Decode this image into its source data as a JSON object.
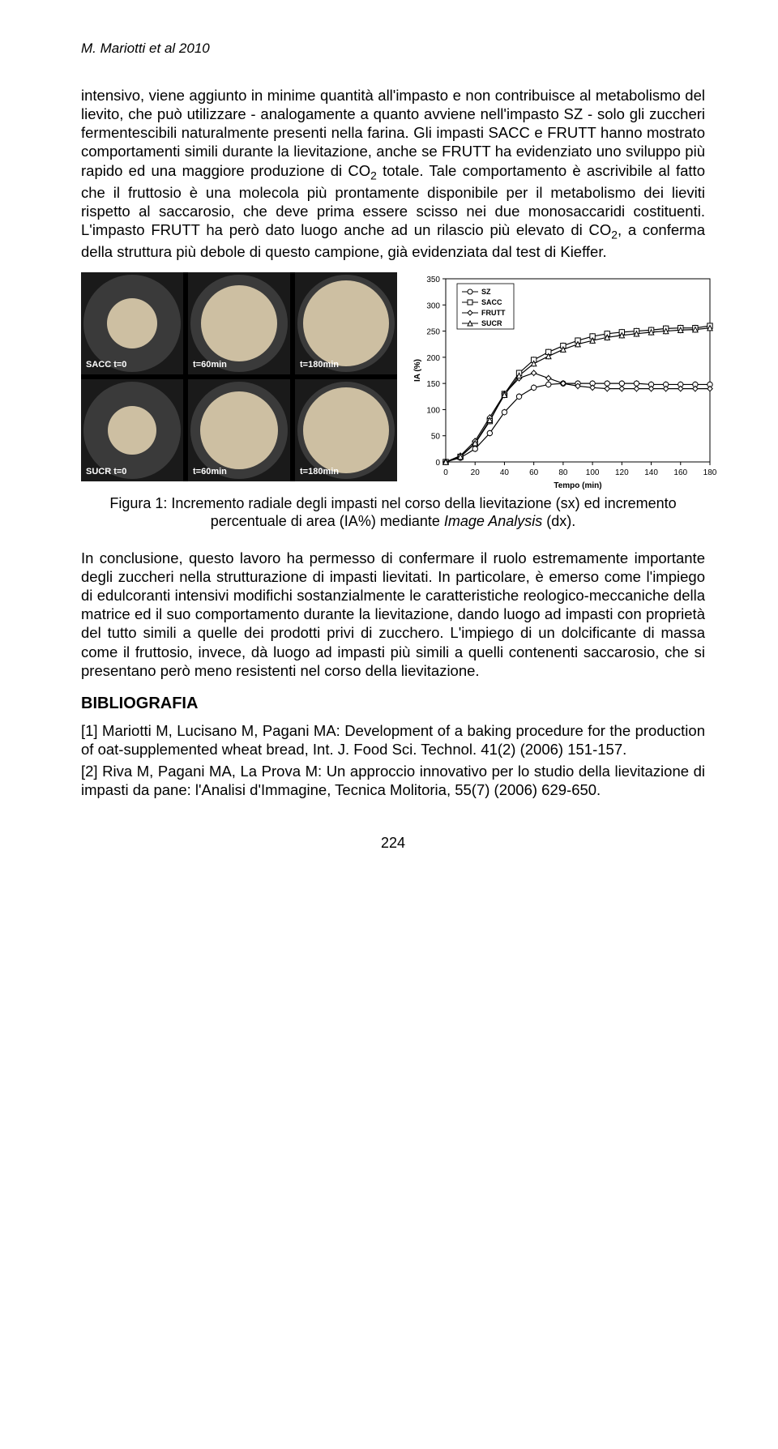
{
  "runningHead": "M. Mariotti et al 2010",
  "para1": "intensivo, viene aggiunto in minime quantità all'impasto e non contribuisce al metabolismo del lievito, che può utilizzare - analogamente a quanto avviene nell'impasto SZ - solo gli zuccheri fermentescibili naturalmente presenti nella farina. Gli impasti SACC e FRUTT hanno mostrato comportamenti simili durante la lievitazione, anche se FRUTT ha evidenziato uno sviluppo più rapido ed una maggiore produzione di CO",
  "para1_sub": "2",
  "para1_cont": " totale. Tale comportamento è ascrivibile al fatto che il fruttosio è una molecola più prontamente disponibile per il metabolismo dei lieviti rispetto al saccarosio, che deve prima essere scisso nei due monosaccaridi costituenti. L'impasto FRUTT ha però dato luogo anche ad un rilascio più elevato di CO",
  "para1_sub2": "2",
  "para1_end": ", a conferma della struttura più debole di questo campione, già evidenziata dal test di Kieffer.",
  "photos": {
    "r1c1": "SACC t=0",
    "r1c2": "t=60min",
    "r1c3": "t=180min",
    "r2c1": "SUCR t=0",
    "r2c2": "t=60min",
    "r2c3": "t=180min"
  },
  "doughSizes": {
    "r1c1": 62,
    "r1c2": 94,
    "r1c3": 106,
    "r2c1": 60,
    "r2c2": 96,
    "r2c3": 106
  },
  "chart": {
    "type": "line",
    "xlabel": "Tempo (min)",
    "ylabel": "IA (%)",
    "xlim": [
      0,
      180
    ],
    "xtick_step": 20,
    "ylim": [
      0,
      350
    ],
    "ytick_step": 50,
    "legend_items": [
      "SZ",
      "SACC",
      "FRUTT",
      "SUCR"
    ],
    "markers": [
      "circle",
      "square",
      "diamond",
      "triangle"
    ],
    "line_color": "#000000",
    "grid_color": "#000000",
    "background_color": "#ffffff",
    "label_fontsize": 10,
    "series": {
      "SZ": {
        "x": [
          0,
          10,
          20,
          30,
          40,
          50,
          60,
          70,
          80,
          90,
          100,
          110,
          120,
          130,
          140,
          150,
          160,
          170,
          180
        ],
        "y": [
          0,
          8,
          25,
          55,
          95,
          125,
          142,
          148,
          150,
          150,
          150,
          150,
          150,
          150,
          148,
          148,
          148,
          148,
          148
        ]
      },
      "SACC": {
        "x": [
          0,
          10,
          20,
          30,
          40,
          50,
          60,
          70,
          80,
          90,
          100,
          110,
          120,
          130,
          140,
          150,
          160,
          170,
          180
        ],
        "y": [
          0,
          10,
          35,
          78,
          130,
          170,
          195,
          210,
          222,
          232,
          240,
          245,
          248,
          250,
          252,
          255,
          256,
          256,
          260
        ]
      },
      "FRUTT": {
        "x": [
          0,
          10,
          20,
          30,
          40,
          50,
          60,
          70,
          80,
          90,
          100,
          110,
          120,
          130,
          140,
          150,
          160,
          170,
          180
        ],
        "y": [
          0,
          12,
          40,
          85,
          130,
          160,
          170,
          160,
          150,
          145,
          142,
          140,
          140,
          140,
          140,
          140,
          140,
          140,
          140
        ]
      },
      "SUCR": {
        "x": [
          0,
          10,
          20,
          30,
          40,
          50,
          60,
          70,
          80,
          90,
          100,
          110,
          120,
          130,
          140,
          150,
          160,
          170,
          180
        ],
        "y": [
          0,
          10,
          36,
          80,
          128,
          165,
          188,
          202,
          215,
          225,
          232,
          238,
          242,
          245,
          248,
          250,
          252,
          253,
          256
        ]
      }
    }
  },
  "figCaption_a": "Figura 1: Incremento radiale degli impasti nel corso della lievitazione (sx) ed incremento percentuale di area (IA%) mediante ",
  "figCaption_ital": "Image Analysis",
  "figCaption_b": " (dx).",
  "para2": "In conclusione, questo lavoro ha permesso di confermare il ruolo estremamente importante degli zuccheri nella strutturazione di impasti lievitati. In particolare, è emerso come l'impiego di edulcoranti intensivi modifichi sostanzialmente le caratteristiche reologico-meccaniche della matrice ed il suo comportamento durante la lievitazione, dando luogo ad impasti con proprietà del tutto simili a quelle dei prodotti privi di zucchero. L'impiego di un dolcificante di massa come il fruttosio, invece, dà luogo ad impasti più simili a quelli contenenti saccarosio, che si presentano però meno resistenti nel corso della lievitazione.",
  "biblioHeading": "BIBLIOGRAFIA",
  "ref1": "[1] Mariotti M, Lucisano M, Pagani MA: Development of a baking procedure for the production of oat-supplemented wheat bread, Int. J. Food Sci. Technol. 41(2) (2006) 151-157.",
  "ref2": "[2] Riva M, Pagani MA, La Prova M: Un approccio innovativo per lo studio della lievitazione di impasti da pane: l'Analisi d'Immagine, Tecnica Molitoria, 55(7) (2006) 629-650.",
  "pageNumber": "224"
}
